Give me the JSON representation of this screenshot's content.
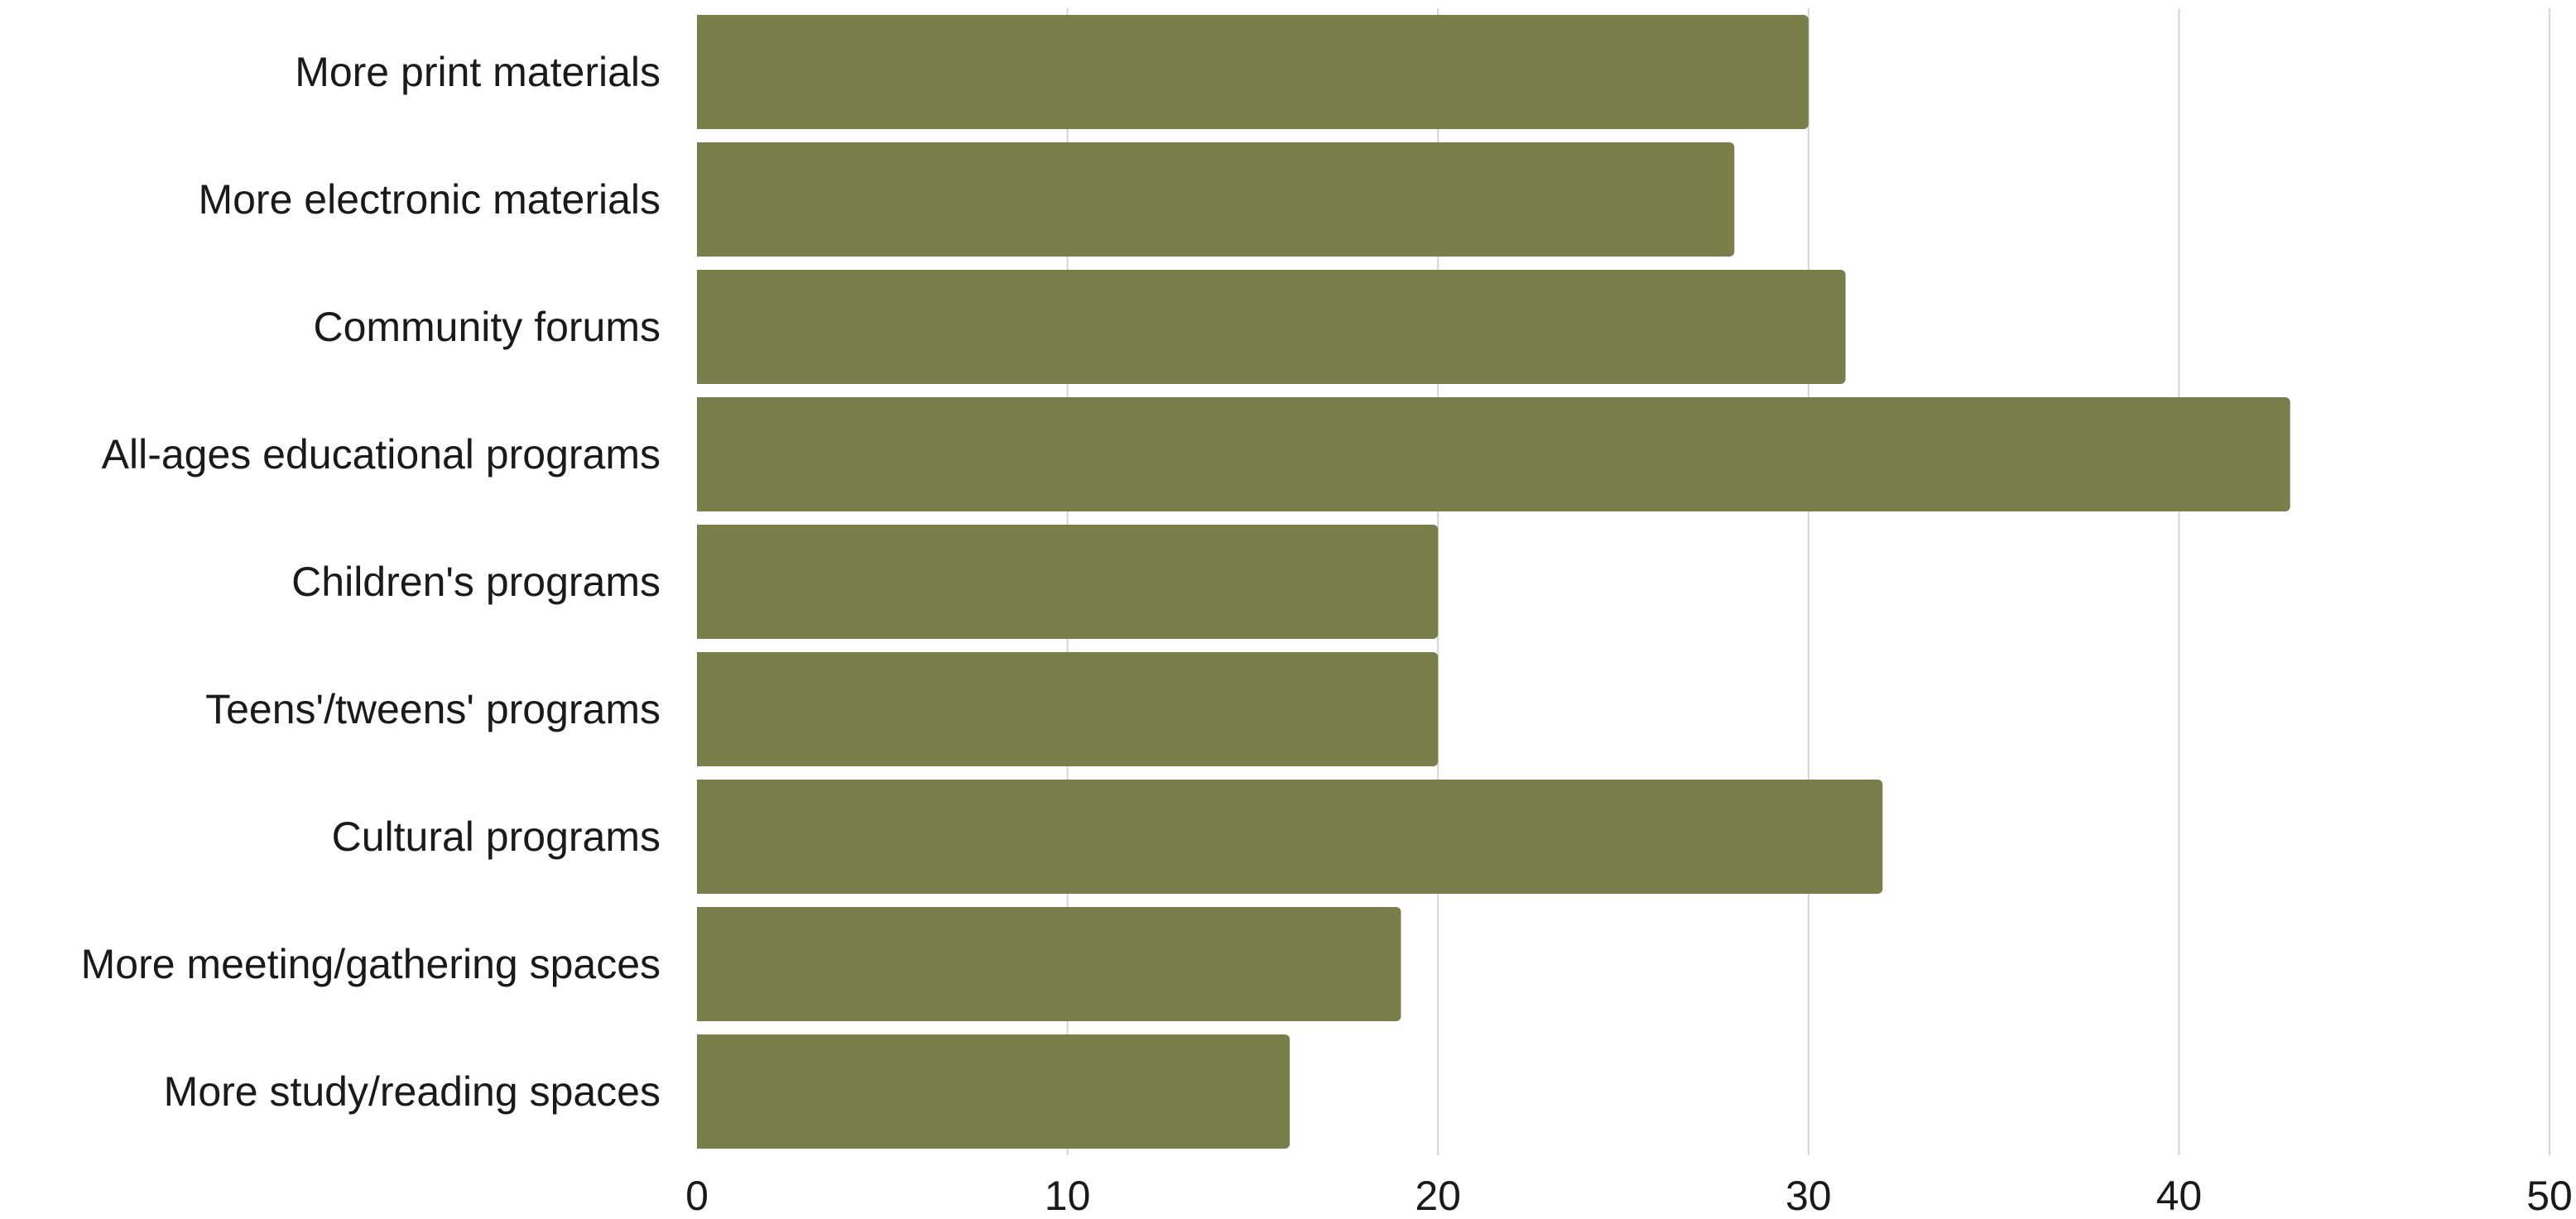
{
  "chart_data": {
    "type": "bar",
    "orientation": "horizontal",
    "categories": [
      "More print materials",
      "More electronic materials",
      "Community forums",
      "All-ages educational programs",
      "Children's programs",
      "Teens'/tweens' programs",
      "Cultural programs",
      "More meeting/gathering spaces",
      "More study/reading spaces"
    ],
    "values": [
      30,
      28,
      31,
      43,
      20,
      20,
      32,
      19,
      16
    ],
    "xlim": [
      0,
      50
    ],
    "xticks": [
      "0",
      "10",
      "20",
      "30",
      "40",
      "50"
    ],
    "title": "",
    "xlabel": "",
    "ylabel": "",
    "grid": "vertical",
    "legend": "none",
    "colors": {
      "bar": "#7a7e4b",
      "grid": "#d4d4d4",
      "text": "#1a1a1a",
      "background": "#ffffff"
    }
  }
}
